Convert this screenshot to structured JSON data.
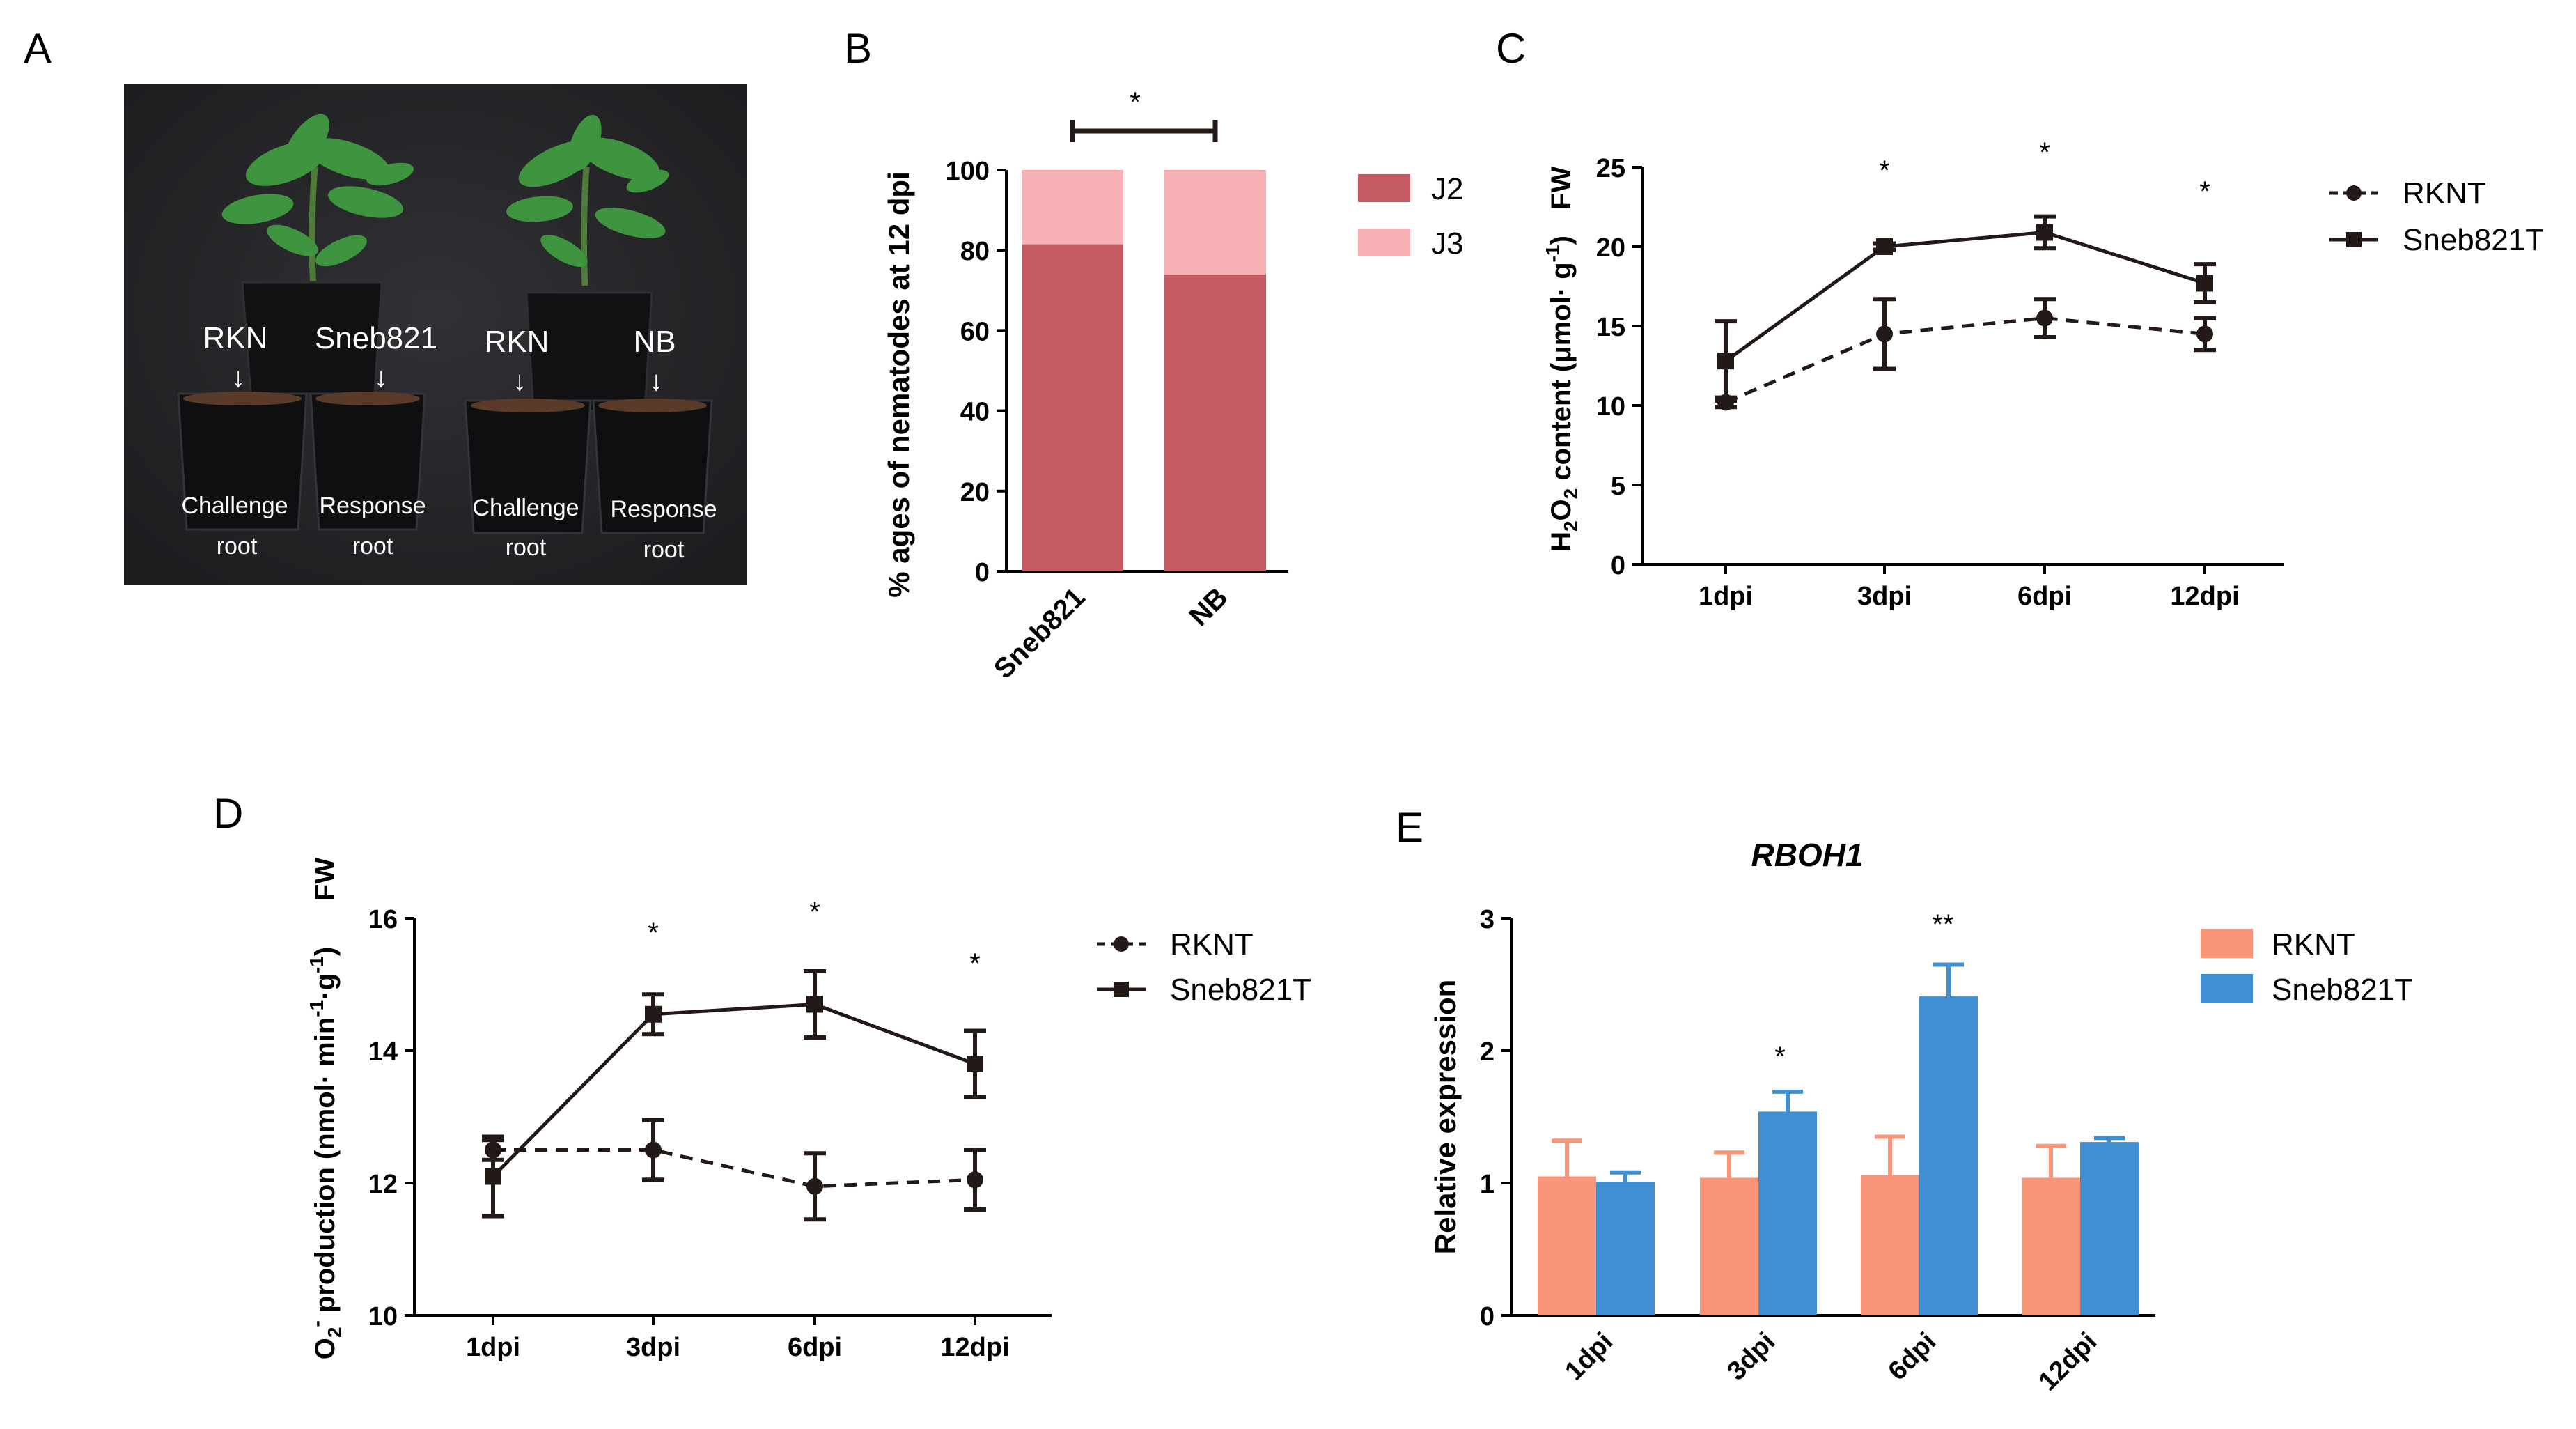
{
  "panels": {
    "A": "A",
    "B": "B",
    "C": "C",
    "D": "D",
    "E": "E"
  },
  "photo": {
    "labels": {
      "rkn1": "RKN",
      "sneb821": "Sneb821",
      "rkn2": "RKN",
      "nb": "NB",
      "arrow": "↓",
      "challenge1": "Challenge",
      "root1": "root",
      "response1": "Response",
      "root2": "root",
      "challenge2": "Challenge",
      "root3": "root",
      "response2": "Response",
      "root4": "root"
    }
  },
  "chart_data": [
    {
      "id": "B",
      "type": "bar",
      "stacked": true,
      "categories": [
        "Sneb821",
        "NB"
      ],
      "series": [
        {
          "name": "J2",
          "values": [
            81.5,
            74
          ],
          "color": "#c45b63"
        },
        {
          "name": "J3",
          "values": [
            18.5,
            26
          ],
          "color": "#f7b1b5"
        }
      ],
      "ylabel": "% ages of nematodes at 12 dpi",
      "ylim": [
        0,
        100
      ],
      "yticks": [
        0,
        20,
        40,
        60,
        80,
        100
      ],
      "ytick_labels": [
        "0",
        "20",
        "40",
        "60",
        "80",
        "100"
      ],
      "significance": "*"
    },
    {
      "id": "C",
      "type": "line",
      "categories": [
        "1dpi",
        "3dpi",
        "6dpi",
        "12dpi"
      ],
      "series": [
        {
          "name": "RKNT",
          "values": [
            10.2,
            14.5,
            15.5,
            14.5
          ],
          "errors": [
            0.3,
            2.2,
            1.2,
            1.0
          ],
          "style": "dashed",
          "marker": "circle"
        },
        {
          "name": "Sneb821T",
          "values": [
            12.8,
            20.0,
            20.9,
            17.7
          ],
          "errors": [
            2.5,
            0.2,
            1.0,
            1.2
          ],
          "style": "solid",
          "marker": "square"
        }
      ],
      "ylabel_parts": {
        "h": "H",
        "two": "2",
        "o": "O",
        "rest": " content (μmol· g",
        "sup": "-1",
        "close": ")",
        "fw": "FW"
      },
      "ylim": [
        0,
        25
      ],
      "yticks": [
        0,
        5,
        10,
        15,
        20,
        25
      ],
      "ytick_labels": [
        "0",
        "5",
        "10",
        "15",
        "20",
        "25"
      ],
      "annotations": [
        "*",
        "*",
        "*"
      ]
    },
    {
      "id": "D",
      "type": "line",
      "categories": [
        "1dpi",
        "3dpi",
        "6dpi",
        "12dpi"
      ],
      "series": [
        {
          "name": "RKNT",
          "values": [
            12.5,
            12.5,
            11.95,
            12.05
          ],
          "errors": [
            0.15,
            0.45,
            0.5,
            0.45
          ],
          "style": "dashed",
          "marker": "circle"
        },
        {
          "name": "Sneb821T",
          "values": [
            12.1,
            14.55,
            14.7,
            13.8
          ],
          "errors": [
            0.6,
            0.3,
            0.5,
            0.5
          ],
          "style": "solid",
          "marker": "square"
        }
      ],
      "ylabel_parts": {
        "o": "O",
        "sub": "2",
        "sup": "-",
        "rest": " production (nmol· min",
        "sup2": "-1",
        "mid": "·g",
        "sup3": "-1",
        "close": ")",
        "fw": "FW"
      },
      "ylim": [
        10,
        16
      ],
      "yticks": [
        10,
        12,
        14,
        16
      ],
      "ytick_labels": [
        "10",
        "12",
        "14",
        "16"
      ],
      "annotations": [
        "*",
        "*",
        "*"
      ]
    },
    {
      "id": "E",
      "type": "bar",
      "title": "RBOH1",
      "categories": [
        "1dpi",
        "3dpi",
        "6dpi",
        "12dpi"
      ],
      "series": [
        {
          "name": "RKNT",
          "values": [
            1.05,
            1.04,
            1.06,
            1.04
          ],
          "errors": [
            0.27,
            0.19,
            0.29,
            0.24
          ],
          "color": "#f9967a"
        },
        {
          "name": "Sneb821T",
          "values": [
            1.01,
            1.54,
            2.41,
            1.31
          ],
          "errors": [
            0.07,
            0.15,
            0.24,
            0.03
          ],
          "color": "#3f8fd2"
        }
      ],
      "ylabel": "Relative expression",
      "ylim": [
        0,
        3
      ],
      "yticks": [
        0,
        1,
        2,
        3
      ],
      "ytick_labels": [
        "0",
        "1",
        "2",
        "3"
      ],
      "annotations": [
        "*",
        "**"
      ]
    }
  ]
}
